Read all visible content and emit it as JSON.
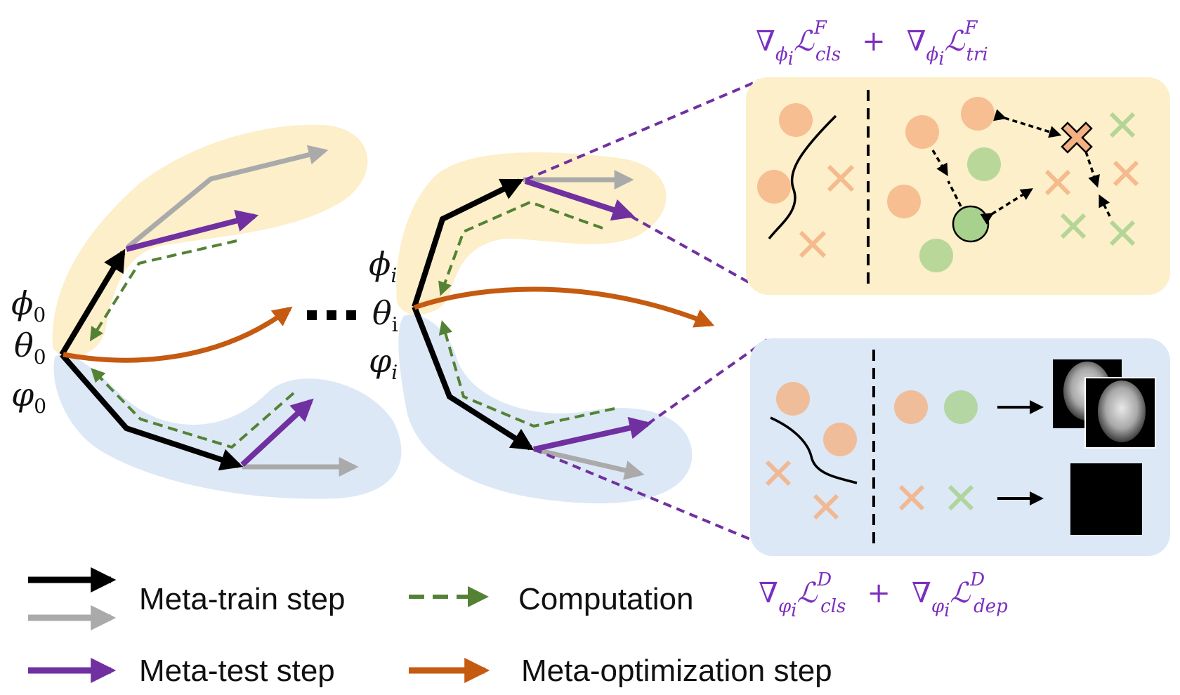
{
  "labels": {
    "phi0": "ϕ",
    "phi0_sub": "0",
    "theta0": "θ",
    "theta0_sub": "0",
    "varphi0": "φ",
    "varphi0_sub": "0",
    "phii": "ϕ",
    "phii_sub": "i",
    "thetai": "θ",
    "thetai_sub": "i",
    "varphii": "φ",
    "varphii_sub": "i",
    "ellipsis": "⋯"
  },
  "formulas": {
    "top": {
      "nabla": "∇",
      "sub1": "ϕ",
      "sub1_idx": "i",
      "loss1": "ℒ",
      "sup1": "F",
      "low1": "cls",
      "plus": "+",
      "sub2": "ϕ",
      "sub2_idx": "i",
      "loss2": "ℒ",
      "sup2": "F",
      "low2": "tri"
    },
    "bottom": {
      "nabla": "∇",
      "sub1": "φ",
      "sub1_idx": "i",
      "loss1": "ℒ",
      "sup1": "D",
      "low1": "cls",
      "plus": "+",
      "sub2": "φ",
      "sub2_idx": "i",
      "loss2": "ℒ",
      "sup2": "D",
      "low2": "dep"
    }
  },
  "legend": {
    "meta_train": "Meta-train step",
    "computation": "Computation",
    "meta_test": "Meta-test step",
    "meta_opt": "Meta-optimization step"
  },
  "colors": {
    "yellow_region": "#fcefc9",
    "blue_region": "#dce8f6",
    "black_arrow": "#000000",
    "gray_arrow": "#aaaaaa",
    "purple_arrow": "#7030a0",
    "green_dashed": "#548235",
    "orange_arrow": "#c55a11",
    "salmon": "#f4b183",
    "green_dot": "#a9d18e"
  }
}
